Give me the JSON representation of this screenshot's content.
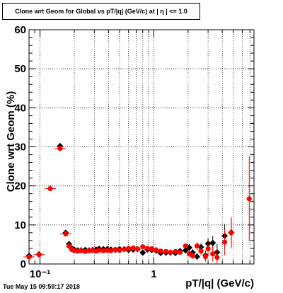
{
  "title": "Clone wrt Geom for Global vs pT/|q| (GeV/c) at | η | <= 1.0",
  "footer": "Tue May 15 09:59:17 2018",
  "colors": {
    "series_black": "#000000",
    "series_red": "#ff0000"
  },
  "chart_data": {
    "type": "scatter",
    "title": "Clone wrt Geom for Global vs pT/|q| (GeV/c) at | η | <= 1.0",
    "xlabel": "pT/|q| (GeV/c)",
    "ylabel": "Clone wrt Geom (%)",
    "xscale": "log",
    "xlim": [
      0.08,
      7.6
    ],
    "ylim": [
      0,
      60
    ],
    "grid": true,
    "xtick_labels": [
      {
        "value": 0.1,
        "label": "10⁻¹"
      },
      {
        "value": 1,
        "label": "1"
      }
    ],
    "ytick_labels": [
      0,
      10,
      20,
      30,
      40,
      50,
      60
    ],
    "series": [
      {
        "color": "#000000",
        "marker": "diamond",
        "points": [
          {
            "x": 0.08,
            "y": 2.1
          },
          {
            "x": 0.098,
            "y": 2.5
          },
          {
            "x": 0.15,
            "y": 30.2
          },
          {
            "x": 0.168,
            "y": 8.0
          },
          {
            "x": 0.18,
            "y": 5.1
          },
          {
            "x": 0.19,
            "y": 4.0
          },
          {
            "x": 0.2,
            "y": 3.7
          },
          {
            "x": 0.215,
            "y": 3.5
          },
          {
            "x": 0.23,
            "y": 3.5
          },
          {
            "x": 0.25,
            "y": 3.6
          },
          {
            "x": 0.27,
            "y": 3.5
          },
          {
            "x": 0.29,
            "y": 3.6
          },
          {
            "x": 0.31,
            "y": 3.7
          },
          {
            "x": 0.33,
            "y": 3.9
          },
          {
            "x": 0.36,
            "y": 3.8
          },
          {
            "x": 0.39,
            "y": 3.8
          },
          {
            "x": 0.42,
            "y": 3.7
          },
          {
            "x": 0.46,
            "y": 3.6
          },
          {
            "x": 0.5,
            "y": 3.8
          },
          {
            "x": 0.55,
            "y": 3.8
          },
          {
            "x": 0.6,
            "y": 3.6
          },
          {
            "x": 0.66,
            "y": 3.7
          },
          {
            "x": 0.72,
            "y": 3.8
          },
          {
            "x": 0.8,
            "y": 2.9
          },
          {
            "x": 0.88,
            "y": 3.7
          },
          {
            "x": 0.96,
            "y": 3.6
          },
          {
            "x": 1.05,
            "y": 3.4
          },
          {
            "x": 1.15,
            "y": 2.8
          },
          {
            "x": 1.28,
            "y": 2.9
          },
          {
            "x": 1.4,
            "y": 2.9
          },
          {
            "x": 1.55,
            "y": 2.8
          },
          {
            "x": 1.7,
            "y": 3.3
          },
          {
            "x": 1.9,
            "y": 3.5
          },
          {
            "x": 2.05,
            "y": 4.2,
            "err": 0.9
          },
          {
            "x": 2.2,
            "y": 2.9,
            "err": 0.9
          },
          {
            "x": 2.4,
            "y": 1.9,
            "err": 0.9
          },
          {
            "x": 2.6,
            "y": 4.3,
            "err": 1.0
          },
          {
            "x": 2.85,
            "y": 2.2,
            "err": 1.2
          },
          {
            "x": 3.0,
            "y": 5.2,
            "err": 1.5
          },
          {
            "x": 3.3,
            "y": 5.4,
            "err": 1.8
          },
          {
            "x": 3.6,
            "y": 3.0,
            "err": 2.2
          },
          {
            "x": 4.2,
            "y": 7.2,
            "err": 3.0
          },
          {
            "x": 4.8,
            "y": 8.1,
            "err": 3.6
          }
        ]
      },
      {
        "color": "#ff0000",
        "marker": "circle",
        "points": [
          {
            "x": 0.08,
            "y": 1.8,
            "xerr": 0.04
          },
          {
            "x": 0.098,
            "y": 2.4,
            "xerr": 0.04
          },
          {
            "x": 0.123,
            "y": 19.3,
            "xerr": 0.04
          },
          {
            "x": 0.15,
            "y": 29.6,
            "xerr": 0.03
          },
          {
            "x": 0.168,
            "y": 7.7,
            "xerr": 0.03
          },
          {
            "x": 0.18,
            "y": 4.6
          },
          {
            "x": 0.19,
            "y": 3.7
          },
          {
            "x": 0.2,
            "y": 3.4
          },
          {
            "x": 0.215,
            "y": 3.3
          },
          {
            "x": 0.23,
            "y": 3.4
          },
          {
            "x": 0.25,
            "y": 3.2
          },
          {
            "x": 0.27,
            "y": 3.4
          },
          {
            "x": 0.29,
            "y": 3.5
          },
          {
            "x": 0.31,
            "y": 3.3
          },
          {
            "x": 0.33,
            "y": 3.5
          },
          {
            "x": 0.36,
            "y": 3.4
          },
          {
            "x": 0.39,
            "y": 3.5
          },
          {
            "x": 0.42,
            "y": 3.4
          },
          {
            "x": 0.46,
            "y": 3.7
          },
          {
            "x": 0.5,
            "y": 3.5
          },
          {
            "x": 0.55,
            "y": 3.8
          },
          {
            "x": 0.6,
            "y": 4.0
          },
          {
            "x": 0.66,
            "y": 4.1
          },
          {
            "x": 0.72,
            "y": 3.8
          },
          {
            "x": 0.8,
            "y": 4.4
          },
          {
            "x": 0.88,
            "y": 4.0
          },
          {
            "x": 0.96,
            "y": 3.9
          },
          {
            "x": 1.05,
            "y": 3.6
          },
          {
            "x": 1.15,
            "y": 3.3
          },
          {
            "x": 1.28,
            "y": 3.2
          },
          {
            "x": 1.4,
            "y": 3.0
          },
          {
            "x": 1.55,
            "y": 3.2
          },
          {
            "x": 1.7,
            "y": 3.0
          },
          {
            "x": 1.9,
            "y": 4.6
          },
          {
            "x": 2.05,
            "y": 2.6,
            "err": 0.8
          },
          {
            "x": 2.2,
            "y": 2.1,
            "err": 0.8
          },
          {
            "x": 2.4,
            "y": 4.6,
            "err": 1.0
          },
          {
            "x": 2.6,
            "y": 3.3,
            "err": 1.1
          },
          {
            "x": 2.85,
            "y": 1.9,
            "err": 1.3
          },
          {
            "x": 3.0,
            "y": 3.9,
            "err": 1.6
          },
          {
            "x": 3.3,
            "y": 2.6,
            "err": 2.0
          },
          {
            "x": 3.6,
            "y": 1.7,
            "err": 2.4
          },
          {
            "x": 4.2,
            "y": 5.6,
            "err": 3.3
          },
          {
            "x": 4.8,
            "y": 8.0,
            "err": 4.0
          },
          {
            "x": 6.9,
            "y": 16.7,
            "err": 10.8
          }
        ]
      }
    ]
  }
}
